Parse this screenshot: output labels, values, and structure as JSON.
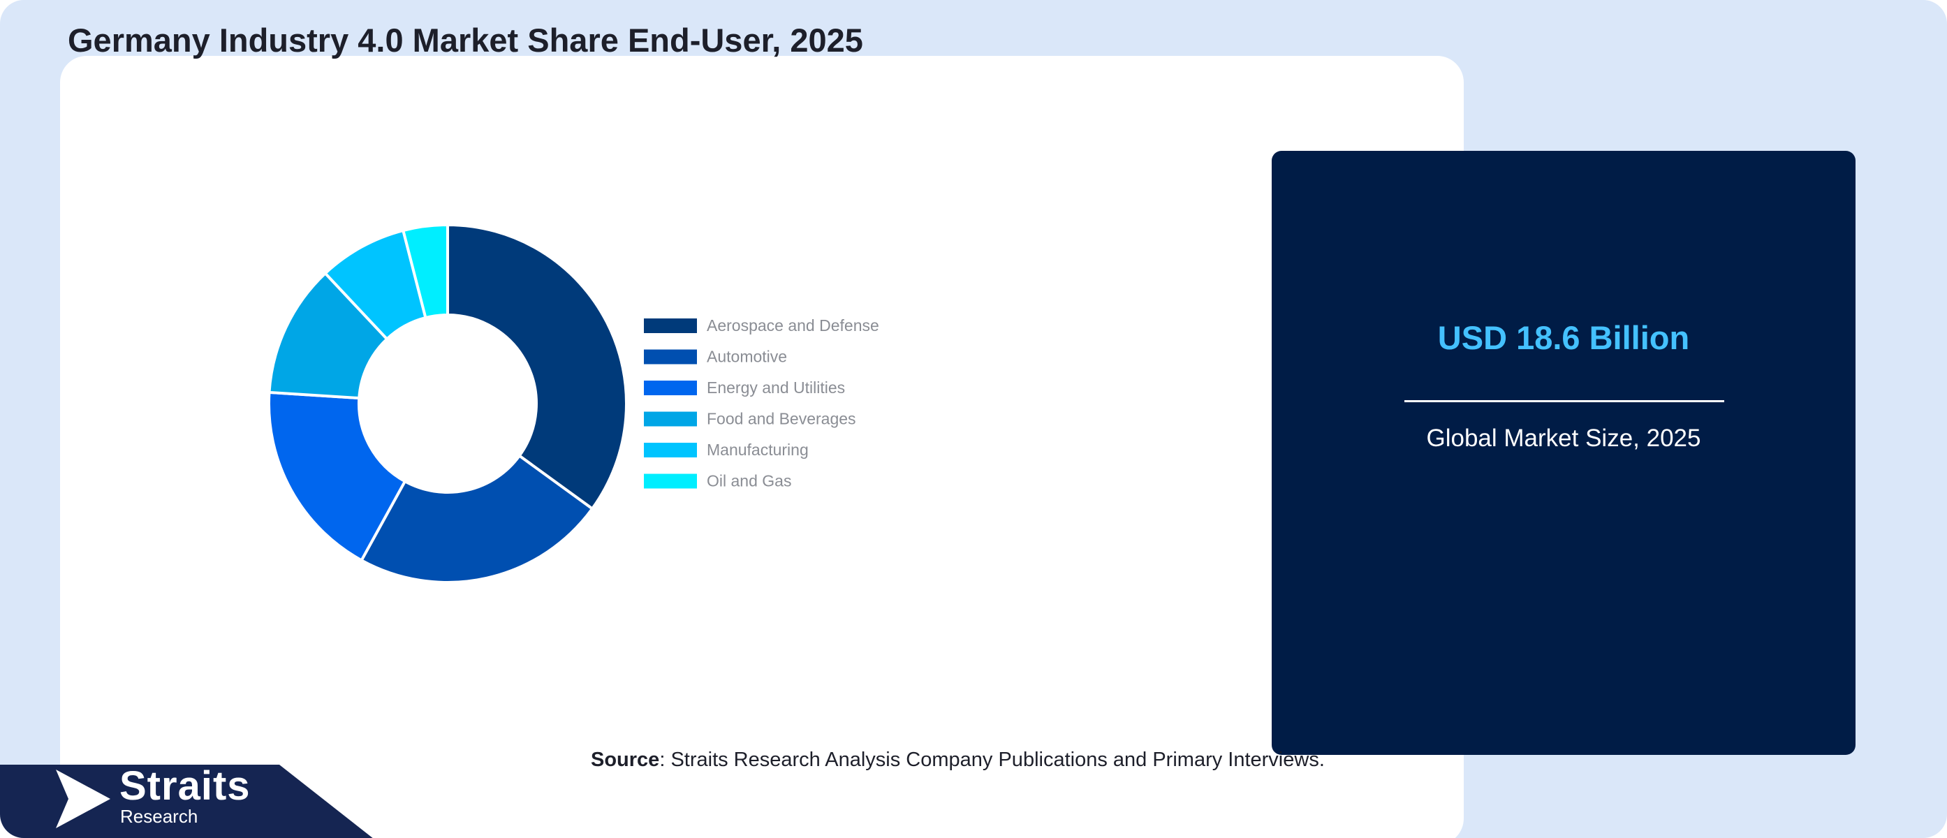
{
  "header": {
    "title": "Germany Industry 4.0 Market Share End-User, 2025"
  },
  "chart_data": {
    "type": "pie",
    "variant": "donut",
    "title": "Germany Industry 4.0 Market Share End-User, 2025",
    "legend_position": "right",
    "categories": [
      "Aerospace and Defense",
      "Automotive",
      "Energy and Utilities",
      "Food and Beverages",
      "Manufacturing",
      "Oil and Gas"
    ],
    "values": [
      35,
      23,
      18,
      12,
      8,
      4
    ],
    "colors": [
      "#003a7a",
      "#004fb0",
      "#0066ee",
      "#00a6e6",
      "#00c4ff",
      "#00eeff"
    ]
  },
  "card": {
    "value": "USD 18.6 Billion",
    "label": "Global Market Size, 2025",
    "background": "#001c46",
    "accent": "#44c1ff"
  },
  "footer": {
    "source_label": "Source",
    "source_text": ": Straits Research Analysis Company Publications and Primary Interviews."
  },
  "brand": {
    "name": "Straits",
    "sub": "Research",
    "icon": "straits-arrow-icon"
  }
}
